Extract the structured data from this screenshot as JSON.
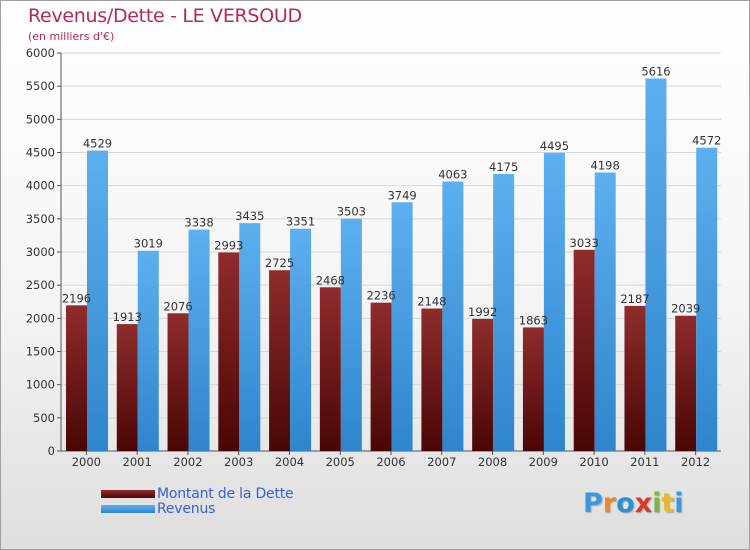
{
  "chart_data": {
    "type": "bar",
    "title": "Revenus/Dette - LE VERSOUD",
    "subtitle": "(en milliers d'€)",
    "xlabel": "",
    "ylabel": "",
    "ylim": [
      0,
      6000
    ],
    "yticks": [
      0,
      500,
      1000,
      1500,
      2000,
      2500,
      3000,
      3500,
      4000,
      4500,
      5000,
      5500,
      6000
    ],
    "grid": true,
    "legend_position": "bottom-left",
    "categories": [
      "2000",
      "2001",
      "2002",
      "2003",
      "2004",
      "2005",
      "2006",
      "2007",
      "2008",
      "2009",
      "2010",
      "2011",
      "2012"
    ],
    "series": [
      {
        "name": "Montant de la Dette",
        "color": "#7a1a1a",
        "values": [
          2196,
          1913,
          2076,
          2993,
          2725,
          2468,
          2236,
          2148,
          1992,
          1863,
          3033,
          2187,
          2039
        ],
        "labels": [
          "2196",
          "1913",
          "2076",
          "2993",
          "2725",
          "2468",
          "2236",
          "2148",
          "1992",
          "1863",
          "3033",
          "2187",
          "2039"
        ]
      },
      {
        "name": "Revenus",
        "color": "#4aa3e8",
        "values": [
          4529,
          3019,
          3338,
          3435,
          3351,
          3503,
          3749,
          4063,
          4175,
          4495,
          4198,
          5616,
          4572
        ],
        "labels": [
          "4529",
          "3019",
          "3338",
          "3435",
          "3351",
          "3503",
          "3749",
          "4063",
          "4175",
          "4495",
          "4198",
          "5616",
          "4572"
        ]
      }
    ]
  },
  "branding": {
    "logo_text": "Proxiti",
    "letter_colors": [
      "#3a9ad9",
      "#e8892b",
      "#2b8fd0",
      "#d43b2a",
      "#7ab648",
      "#e8b82b",
      "#3a9ad9"
    ]
  }
}
